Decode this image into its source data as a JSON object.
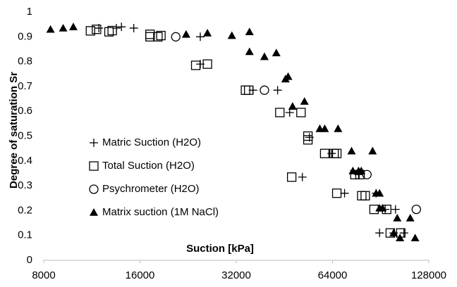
{
  "chart_data": {
    "type": "scatter",
    "x_label": "Suction [kPa]",
    "y_label": "Degree of saturation Sr",
    "xscale": "log",
    "xlim": [
      8000,
      128000
    ],
    "xticks": [
      8000,
      16000,
      32000,
      64000,
      128000
    ],
    "ylim": [
      0,
      1
    ],
    "yticks": [
      0,
      0.1,
      0.2,
      0.3,
      0.4,
      0.5,
      0.6,
      0.7,
      0.8,
      0.9,
      1
    ],
    "grid": false,
    "legend": "lower left",
    "series": [
      {
        "name": "Matric Suction (H2O)",
        "marker": "plus",
        "color": "#000000",
        "x": [
          11900,
          13500,
          14000,
          15300,
          24700,
          24700,
          36100,
          43100,
          47000,
          54200,
          51500,
          63600,
          69800,
          77200,
          87600,
          89800,
          93500,
          99400,
          100700,
          107000
        ],
        "values": [
          0.935,
          0.935,
          0.94,
          0.935,
          0.9,
          0.79,
          0.685,
          0.685,
          0.595,
          0.495,
          0.335,
          0.43,
          0.27,
          0.345,
          0.27,
          0.11,
          0.205,
          0.11,
          0.205,
          0.11
        ]
      },
      {
        "name": "Total Suction (H2O)",
        "marker": "square",
        "color": "#000000",
        "x": [
          11200,
          11700,
          12800,
          13100,
          17200,
          17200,
          18200,
          18600,
          23900,
          26000,
          34200,
          35000,
          43800,
          51000,
          53600,
          53600,
          47700,
          60500,
          64700,
          66000,
          66000,
          75200,
          78000,
          79000,
          81000,
          86300,
          94500,
          97000,
          104600
        ],
        "values": [
          0.924,
          0.93,
          0.92,
          0.925,
          0.91,
          0.9,
          0.9,
          0.905,
          0.785,
          0.79,
          0.685,
          0.685,
          0.595,
          0.595,
          0.5,
          0.485,
          0.335,
          0.43,
          0.43,
          0.43,
          0.27,
          0.345,
          0.345,
          0.26,
          0.26,
          0.205,
          0.205,
          0.11,
          0.11
        ]
      },
      {
        "name": "Psychrometer (H2O)",
        "marker": "circle",
        "color": "#000000",
        "x": [
          20700,
          39200,
          82000,
          117000
        ],
        "values": [
          0.9,
          0.685,
          0.345,
          0.205
        ]
      },
      {
        "name": "Matrix suction (1M NaCl)",
        "marker": "triangle",
        "color": "#000000",
        "x": [
          8400,
          9200,
          9900,
          22300,
          26000,
          31000,
          35200,
          35200,
          39200,
          42700,
          45600,
          46500,
          48000,
          52300,
          58400,
          60500,
          66600,
          73400,
          74100,
          77200,
          78700,
          85400,
          87600,
          89800,
          89800,
          91700,
          99400,
          102000,
          112000,
          116000,
          104000
        ],
        "values": [
          0.93,
          0.935,
          0.94,
          0.91,
          0.915,
          0.905,
          0.92,
          0.84,
          0.82,
          0.835,
          0.73,
          0.74,
          0.62,
          0.64,
          0.53,
          0.53,
          0.53,
          0.44,
          0.36,
          0.36,
          0.36,
          0.44,
          0.27,
          0.27,
          0.21,
          0.21,
          0.11,
          0.17,
          0.17,
          0.09,
          0.09
        ]
      }
    ]
  }
}
